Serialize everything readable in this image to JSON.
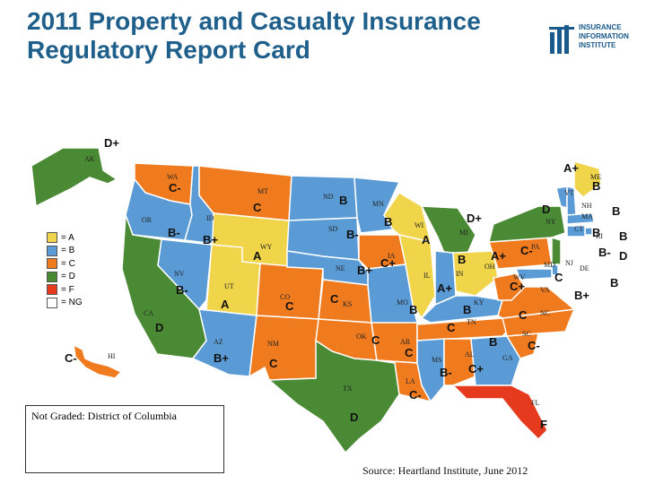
{
  "title": "2011 Property and Casualty Insurance Regulatory Report Card",
  "logo": {
    "lines": [
      "INSURANCE",
      "INFORMATION",
      "INSTITUTE"
    ],
    "color": "#1a5a8c"
  },
  "legend": [
    {
      "label": "= A",
      "color": "#f0d44a"
    },
    {
      "label": "= B",
      "color": "#5b9bd5"
    },
    {
      "label": "= C",
      "color": "#f07b1f"
    },
    {
      "label": "= D",
      "color": "#4a8a34"
    },
    {
      "label": "= F",
      "color": "#e53a1e"
    },
    {
      "label": "= NG",
      "color": "#ffffff"
    }
  ],
  "note": "Not Graded: District of Columbia",
  "source": "Source: Heartland Institute, June 2012",
  "states": [
    {
      "abbr": "WA",
      "grade": "C-"
    },
    {
      "abbr": "OR",
      "grade": "B-"
    },
    {
      "abbr": "CA",
      "grade": "D"
    },
    {
      "abbr": "ID",
      "grade": "B+"
    },
    {
      "abbr": "NV",
      "grade": "B-"
    },
    {
      "abbr": "MT",
      "grade": "C"
    },
    {
      "abbr": "WY",
      "grade": "A"
    },
    {
      "abbr": "UT",
      "grade": "A"
    },
    {
      "abbr": "AZ",
      "grade": "B+"
    },
    {
      "abbr": "CO",
      "grade": "C"
    },
    {
      "abbr": "NM",
      "grade": "C"
    },
    {
      "abbr": "ND",
      "grade": "B"
    },
    {
      "abbr": "SD",
      "grade": "B-"
    },
    {
      "abbr": "NE",
      "grade": "B+"
    },
    {
      "abbr": "KS",
      "grade": "C"
    },
    {
      "abbr": "OK",
      "grade": "C"
    },
    {
      "abbr": "TX",
      "grade": "D"
    },
    {
      "abbr": "MN",
      "grade": "B"
    },
    {
      "abbr": "IA",
      "grade": "C+"
    },
    {
      "abbr": "MO",
      "grade": "B"
    },
    {
      "abbr": "AR",
      "grade": "C"
    },
    {
      "abbr": "LA",
      "grade": "C-"
    },
    {
      "abbr": "WI",
      "grade": "A"
    },
    {
      "abbr": "IL",
      "grade": "A+"
    },
    {
      "abbr": "MI",
      "grade": "D+"
    },
    {
      "abbr": "IN",
      "grade": "B"
    },
    {
      "abbr": "OH",
      "grade": "A+"
    },
    {
      "abbr": "KY",
      "grade": "B"
    },
    {
      "abbr": "TN",
      "grade": "C"
    },
    {
      "abbr": "MS",
      "grade": "B-"
    },
    {
      "abbr": "AL",
      "grade": "C+"
    },
    {
      "abbr": "GA",
      "grade": "B"
    },
    {
      "abbr": "FL",
      "grade": "F"
    },
    {
      "abbr": "SC",
      "grade": "C-"
    },
    {
      "abbr": "NC",
      "grade": "C"
    },
    {
      "abbr": "VA",
      "grade": "C"
    },
    {
      "abbr": "WV",
      "grade": "C+"
    },
    {
      "abbr": "PA",
      "grade": "C-"
    },
    {
      "abbr": "NY",
      "grade": "D"
    },
    {
      "abbr": "VT",
      "grade": "B"
    },
    {
      "abbr": "ME",
      "grade": "A+"
    },
    {
      "abbr": "NH",
      "grade": "B"
    },
    {
      "abbr": "MA",
      "grade": "B"
    },
    {
      "abbr": "RI",
      "grade": "B"
    },
    {
      "abbr": "CT",
      "grade": "B-"
    },
    {
      "abbr": "NJ",
      "grade": "D"
    },
    {
      "abbr": "DE",
      "grade": "B"
    },
    {
      "abbr": "MD",
      "grade": "B+"
    },
    {
      "abbr": "AK",
      "grade": "D+"
    },
    {
      "abbr": "HI",
      "grade": "C-"
    }
  ],
  "grade_colors": {
    "A": "#f0d44a",
    "B": "#5b9bd5",
    "C": "#f07b1f",
    "D": "#4a8a34",
    "F": "#e53a1e"
  }
}
